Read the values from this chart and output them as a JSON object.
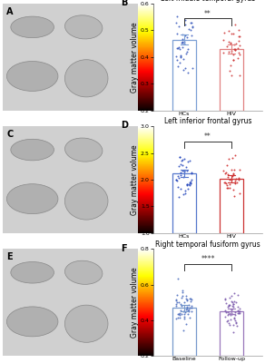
{
  "panel_B": {
    "title": "Left middle temporal gyrus",
    "ylabel": "Gray matter volume",
    "groups": [
      "HCs",
      "HIV"
    ],
    "means": [
      0.465,
      0.43
    ],
    "sems": [
      0.018,
      0.016
    ],
    "ylim": [
      0.2,
      0.6
    ],
    "yticks": [
      0.2,
      0.3,
      0.4,
      0.5,
      0.6
    ],
    "bar_colors": [
      "#7b9fd4",
      "#e08080"
    ],
    "dot_colors": [
      "#3355bb",
      "#cc3333"
    ],
    "significance": "**",
    "n1": 42,
    "n2": 35,
    "label": "B"
  },
  "panel_D": {
    "title": "Left inferior frontal gyrus",
    "ylabel": "Gray matter volume",
    "groups": [
      "HCs",
      "HIV"
    ],
    "means": [
      2.12,
      2.02
    ],
    "sems": [
      0.07,
      0.065
    ],
    "ylim": [
      1.0,
      3.0
    ],
    "yticks": [
      1.0,
      1.5,
      2.0,
      2.5,
      3.0
    ],
    "bar_colors": [
      "#5577cc",
      "#cc3333"
    ],
    "dot_colors": [
      "#2244bb",
      "#cc2222"
    ],
    "significance": "**",
    "n1": 42,
    "n2": 35,
    "label": "D"
  },
  "panel_F": {
    "title": "Right temporal fusiform gyrus",
    "ylabel": "Gray matter volume",
    "groups": [
      "Baseline",
      "Follow-up"
    ],
    "means": [
      0.47,
      0.45
    ],
    "sems": [
      0.018,
      0.015
    ],
    "ylim": [
      0.2,
      0.8
    ],
    "yticks": [
      0.2,
      0.4,
      0.6,
      0.8
    ],
    "bar_colors": [
      "#7799cc",
      "#9977bb"
    ],
    "dot_colors": [
      "#4466bb",
      "#7755aa"
    ],
    "significance": "****",
    "n1": 52,
    "n2": 52,
    "label": "F"
  },
  "brain_labels": [
    "A",
    "C",
    "E"
  ],
  "label_fontsize": 5.5,
  "title_fontsize": 5.5,
  "tick_fontsize": 4.5,
  "sig_fontsize": 5.5,
  "panel_label_fontsize": 7
}
